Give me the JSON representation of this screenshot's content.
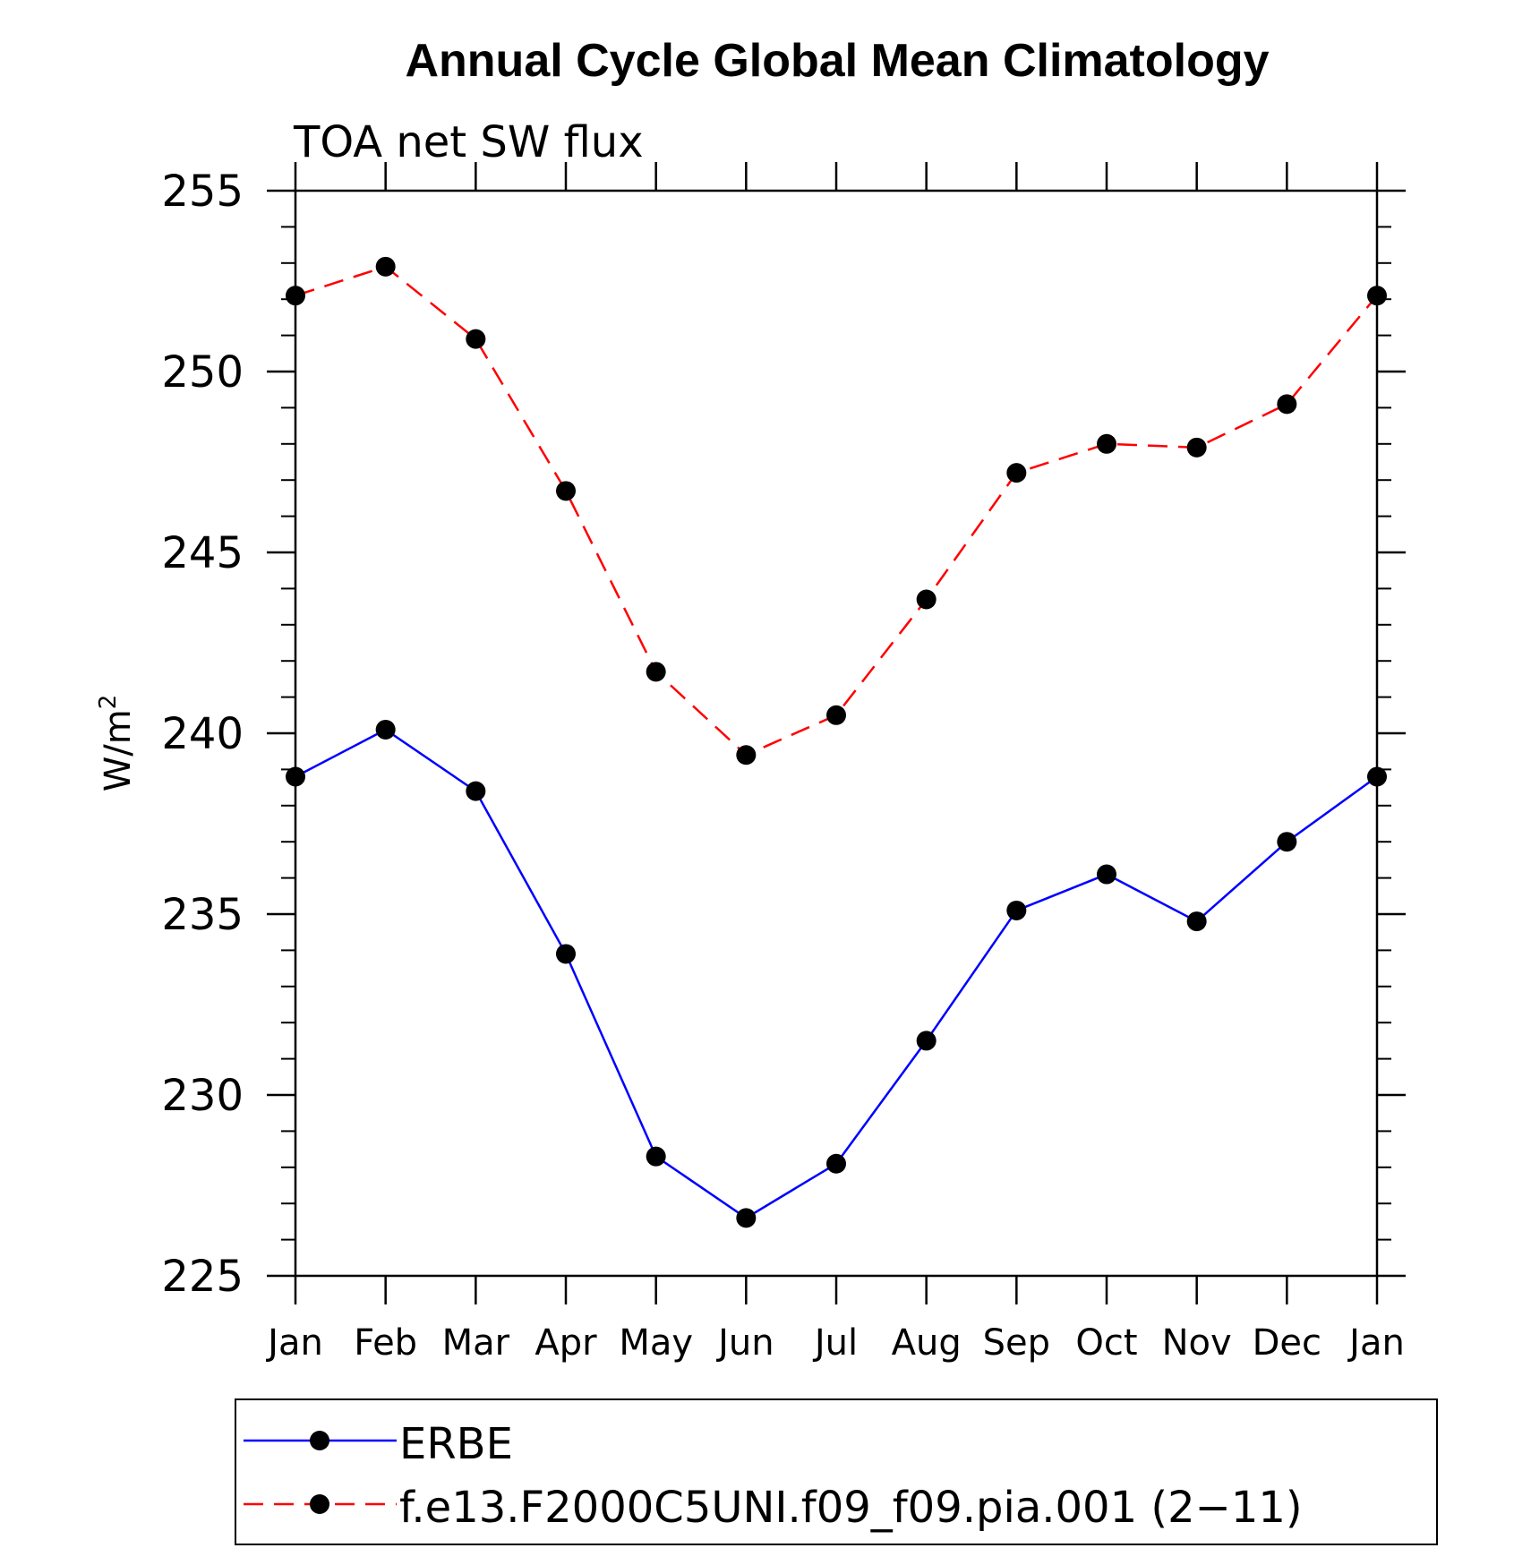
{
  "chart_data": {
    "type": "line",
    "title": "Annual Cycle Global Mean Climatology",
    "subtitle": "TOA net SW flux",
    "ylabel_base": "W/m",
    "ylabel_sup": "2",
    "xlabel": "",
    "categories": [
      "Jan",
      "Feb",
      "Mar",
      "Apr",
      "May",
      "Jun",
      "Jul",
      "Aug",
      "Sep",
      "Oct",
      "Nov",
      "Dec",
      "Jan"
    ],
    "ylim": [
      225,
      255
    ],
    "yticks": [
      225,
      230,
      235,
      240,
      245,
      250,
      255
    ],
    "yminor_step": 1,
    "grid": false,
    "legend_position": "bottom",
    "series": [
      {
        "name": "ERBE",
        "color": "#0000ff",
        "dashed": false,
        "values": [
          238.8,
          240.1,
          238.4,
          233.9,
          228.3,
          226.6,
          228.1,
          231.5,
          235.1,
          236.1,
          234.8,
          237.0,
          238.8
        ]
      },
      {
        "name": "f.e13.F2000C5UNI.f09_f09.pia.001 (2−11)",
        "color": "#ff0000",
        "dashed": true,
        "values": [
          252.1,
          252.9,
          250.9,
          246.7,
          241.7,
          239.4,
          240.5,
          243.7,
          247.2,
          248.0,
          247.9,
          249.1,
          252.1
        ]
      }
    ]
  }
}
